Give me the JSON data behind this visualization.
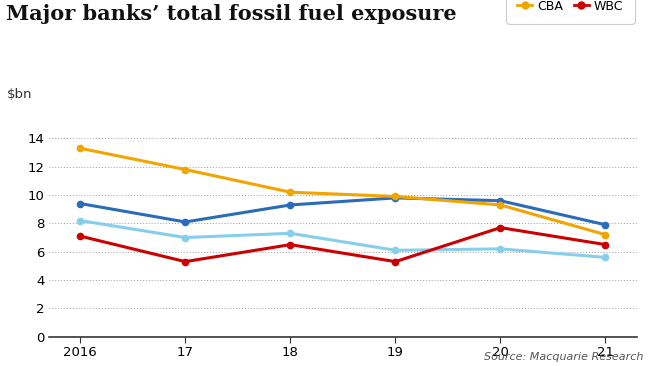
{
  "title": "Major banks’ total fossil fuel exposure",
  "ylabel": "$bn",
  "source": "Source: Macquarie Research",
  "x_labels": [
    "2016",
    "17",
    "18",
    "19",
    "20",
    "21"
  ],
  "x_values": [
    0,
    1,
    2,
    3,
    4,
    5
  ],
  "series": {
    "ANZ": {
      "values": [
        9.4,
        8.1,
        9.3,
        9.8,
        9.6,
        7.9
      ],
      "color": "#2b6cb8",
      "marker": "o"
    },
    "CBA": {
      "values": [
        13.3,
        11.8,
        10.2,
        9.9,
        9.3,
        7.2
      ],
      "color": "#f0a500",
      "marker": "o"
    },
    "NAB": {
      "values": [
        8.2,
        7.0,
        7.3,
        6.1,
        6.2,
        5.6
      ],
      "color": "#87ceeb",
      "marker": "o"
    },
    "WBC": {
      "values": [
        7.1,
        5.3,
        6.5,
        5.3,
        7.7,
        6.5
      ],
      "color": "#cc0000",
      "marker": "o"
    }
  },
  "ylim": [
    0,
    15.5
  ],
  "yticks": [
    0,
    2,
    4,
    6,
    8,
    10,
    12,
    14
  ],
  "background_color": "#ffffff",
  "title_fontsize": 15,
  "axis_fontsize": 9.5,
  "legend_fontsize": 9
}
